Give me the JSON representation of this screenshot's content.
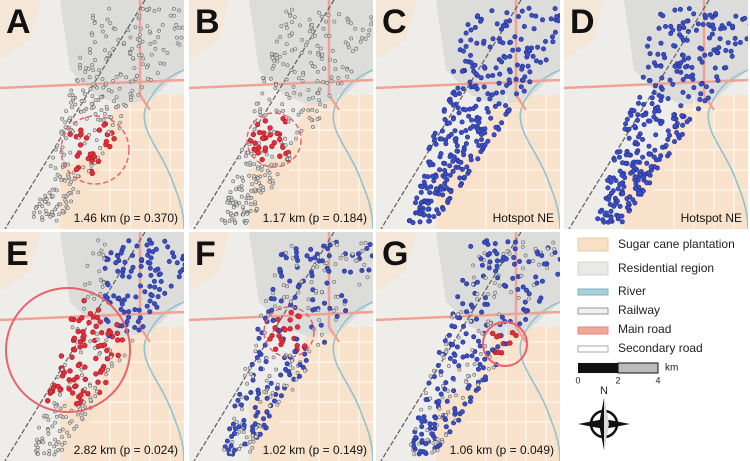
{
  "panels": [
    {
      "letter": "A",
      "caption": "1.46 km (p = 0.370)"
    },
    {
      "letter": "B",
      "caption": "1.17 km (p = 0.184)"
    },
    {
      "letter": "C",
      "caption": "Hotspot NE"
    },
    {
      "letter": "D",
      "caption": "Hotspot NE"
    },
    {
      "letter": "E",
      "caption": "2.82 km (p = 0.024)"
    },
    {
      "letter": "F",
      "caption": "1.02 km (p = 0.149)"
    },
    {
      "letter": "G",
      "caption": "1.06 km (p = 0.049)"
    }
  ],
  "legend": {
    "items": [
      "Sugar cane plantation",
      "Residential region",
      "River",
      "Railway",
      "Main road",
      "Secondary road"
    ]
  },
  "scale_bar": {
    "ticks": [
      0,
      2,
      4
    ],
    "unit": "km"
  },
  "north": "N"
}
